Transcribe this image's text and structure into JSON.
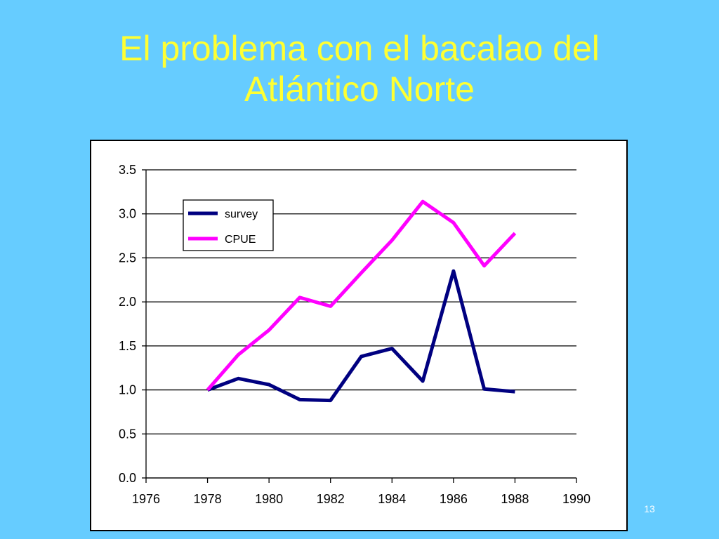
{
  "title_lines": [
    "El problema con el bacalao del",
    "Atlántico Norte"
  ],
  "page_number": "13",
  "colors": {
    "background": "#66ccff",
    "title": "#ffff33",
    "survey": "#000080",
    "cpue": "#ff00ff"
  },
  "chart_data": {
    "type": "line",
    "x": [
      1978,
      1979,
      1980,
      1981,
      1982,
      1983,
      1984,
      1985,
      1986,
      1987,
      1988
    ],
    "series": [
      {
        "name": "survey",
        "values": [
          1.0,
          1.13,
          1.06,
          0.89,
          0.88,
          1.38,
          1.47,
          1.1,
          2.35,
          1.01,
          0.98
        ]
      },
      {
        "name": "CPUE",
        "values": [
          1.0,
          1.4,
          1.68,
          2.05,
          1.95,
          2.33,
          2.7,
          3.14,
          2.9,
          2.41,
          2.78
        ]
      }
    ],
    "xlim": [
      1976,
      1990
    ],
    "ylim": [
      0,
      3.5
    ],
    "x_ticks": [
      "1976",
      "1978",
      "1980",
      "1982",
      "1984",
      "1986",
      "1988",
      "1990"
    ],
    "y_ticks": [
      "0.0",
      "0.5",
      "1.0",
      "1.5",
      "2.0",
      "2.5",
      "3.0",
      "3.5"
    ],
    "grid": "horizontal",
    "legend_position": "top-left",
    "xlabel": "",
    "ylabel": ""
  }
}
